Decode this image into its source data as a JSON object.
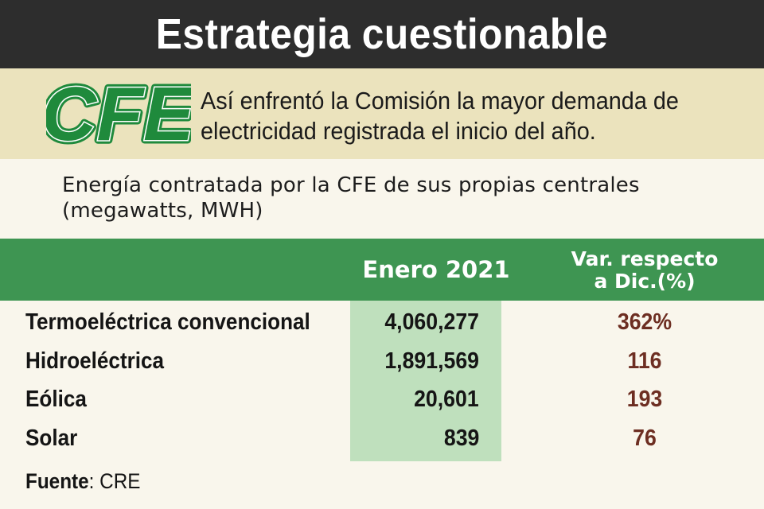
{
  "title": "Estrategia cuestionable",
  "logo_text": "CFE",
  "headline": "Así enfrentó la Comisión la mayor demanda de electricidad registrada el inicio del año.",
  "subtitle": {
    "line1": "Energía contratada por la CFE de sus propias centrales",
    "line2": "(megawatts, MWH)"
  },
  "colors": {
    "title_bar": "#2d2d2d",
    "header_band": "#ebe3bd",
    "table_header": "#3e9552",
    "value_column": "#bfe0bd",
    "variation_text": "#6d2e22",
    "logo_green": "#1f8a3c"
  },
  "chart_data": {
    "type": "table",
    "title": "Energía contratada por la CFE de sus propias centrales (megawatts, MWH)",
    "columns": [
      "",
      "Enero 2021",
      "Var. respecto a Dic.(%)"
    ],
    "column_header_2_lines": [
      "Var. respecto",
      "a Dic.(%)"
    ],
    "rows": [
      {
        "label": "Termoeléctrica convencional",
        "value": "4,060,277",
        "var": "362%"
      },
      {
        "label": "Hidroeléctrica",
        "value": "1,891,569",
        "var": "116"
      },
      {
        "label": "Eólica",
        "value": "20,601",
        "var": "193"
      },
      {
        "label": "Solar",
        "value": "839",
        "var": "76"
      }
    ],
    "values": [
      4060277,
      1891569,
      20601,
      839
    ],
    "variation_percent": [
      362,
      116,
      193,
      76
    ]
  },
  "source": {
    "label": "Fuente",
    "text": ": CRE"
  }
}
